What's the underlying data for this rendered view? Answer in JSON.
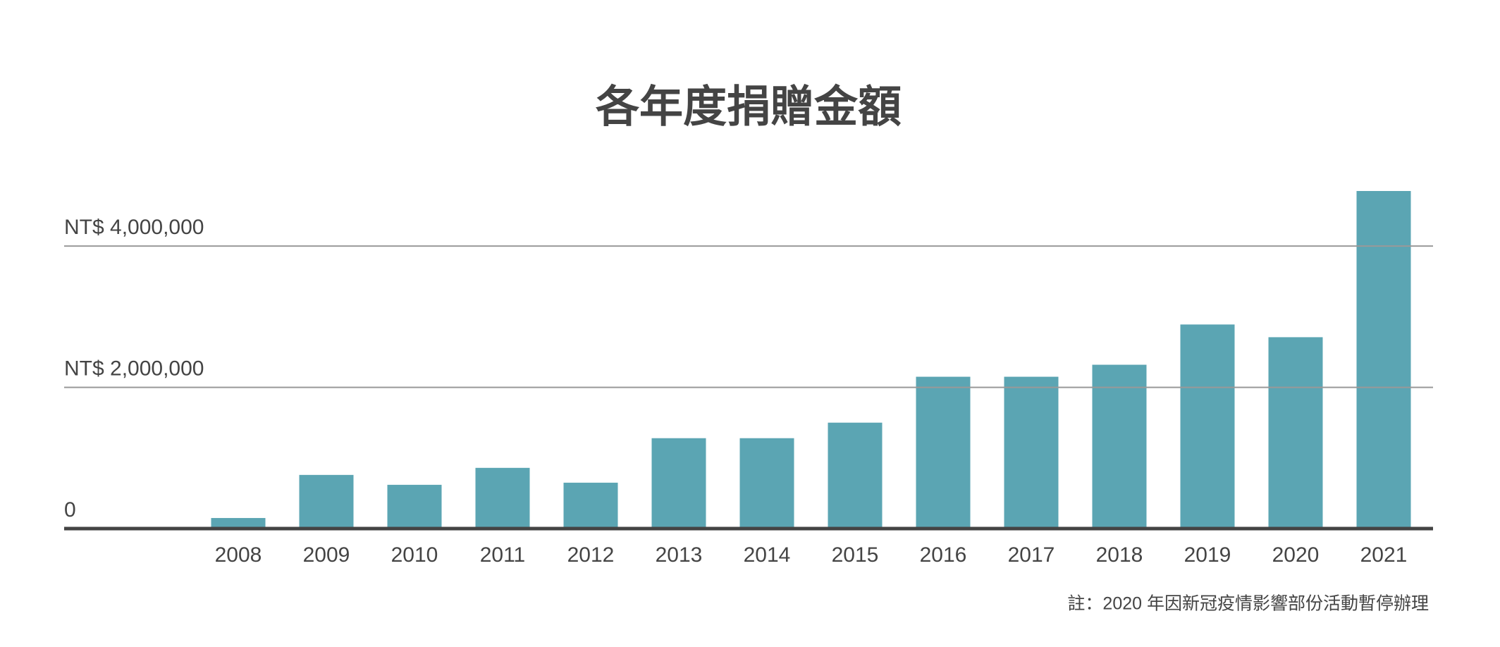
{
  "chart_data": {
    "type": "bar",
    "title": "各年度捐贈金額",
    "categories": [
      "2008",
      "2009",
      "2010",
      "2011",
      "2012",
      "2013",
      "2014",
      "2015",
      "2016",
      "2017",
      "2018",
      "2019",
      "2020",
      "2021"
    ],
    "values": [
      150000,
      760000,
      620000,
      860000,
      650000,
      1280000,
      1280000,
      1500000,
      2150000,
      2150000,
      2320000,
      2890000,
      2710000,
      4780000
    ],
    "color": "#5ba5b3",
    "ylim": [
      0,
      4800000
    ],
    "yticks": [
      0,
      {
        "value": 2000000,
        "label": "NT$ 2,000,000"
      },
      {
        "value": 4000000,
        "label": "NT$ 4,000,000"
      }
    ],
    "grid": true,
    "note": "註：2020 年因新冠疫情影響部份活動暫停辦理"
  }
}
